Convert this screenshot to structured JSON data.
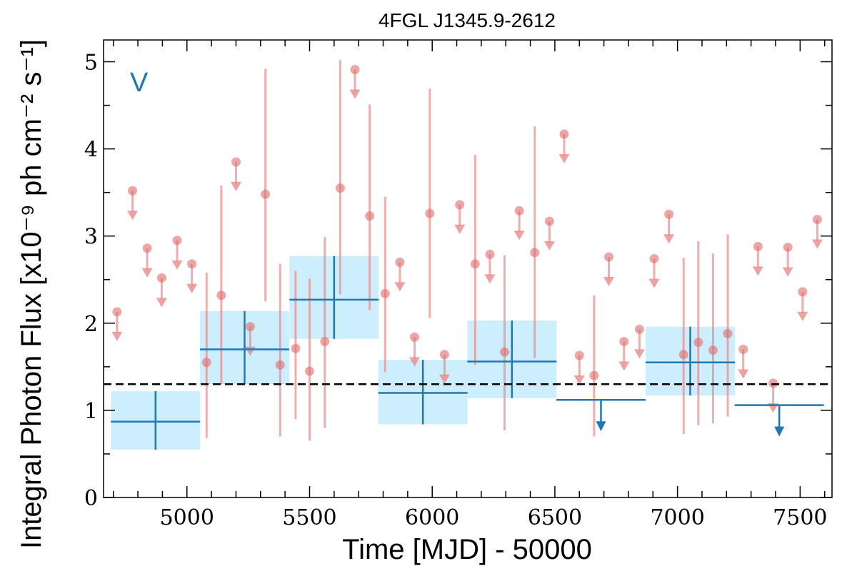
{
  "chart_data": {
    "type": "scatter",
    "title": "4FGL J1345.9-2612",
    "xlabel": "Time [MJD] - 50000",
    "ylabel": "Integral Photon Flux [x10⁻⁹ ph cm⁻² s⁻¹]",
    "panel_label": "V",
    "xlim": [
      4660,
      7630
    ],
    "ylim": [
      0,
      5.25
    ],
    "xticks": [
      5000,
      5500,
      6000,
      6500,
      7000,
      7500
    ],
    "yticks": [
      0,
      1,
      2,
      3,
      4,
      5
    ],
    "grid": false,
    "reference_line": {
      "y": 1.3,
      "style": "dashed"
    },
    "colors": {
      "coarse": "#1f77b4",
      "coarse_band": "#cdeefc",
      "fine": "#e88a8a",
      "reference": "#000000"
    },
    "series": [
      {
        "name": "",
        "points": [
          {
            "x": 4872,
            "y": 0.87,
            "xerr": 182,
            "ylo": 0.55,
            "yhi": 1.22
          },
          {
            "x": 5235,
            "y": 1.7,
            "xerr": 182,
            "ylo": 1.3,
            "yhi": 2.14
          },
          {
            "x": 5600,
            "y": 2.27,
            "xerr": 182,
            "ylo": 1.82,
            "yhi": 2.77
          },
          {
            "x": 5962,
            "y": 1.2,
            "xerr": 182,
            "ylo": 0.84,
            "yhi": 1.58
          },
          {
            "x": 6325,
            "y": 1.56,
            "xerr": 182,
            "ylo": 1.14,
            "yhi": 2.03
          },
          {
            "x": 7052,
            "y": 1.55,
            "xerr": 182,
            "ylo": 1.17,
            "yhi": 1.96
          }
        ],
        "upper_limits": [
          {
            "x": 6688,
            "y": 1.12,
            "xerr": 182
          },
          {
            "x": 7415,
            "y": 1.06,
            "xerr": 182
          }
        ]
      },
      {
        "name": "",
        "points": [
          {
            "x": 5080,
            "y": 1.55,
            "ylo": 0.68,
            "yhi": 2.58
          },
          {
            "x": 5140,
            "y": 2.32,
            "ylo": 1.3,
            "yhi": 3.58
          },
          {
            "x": 5320,
            "y": 3.48,
            "ylo": 2.25,
            "yhi": 4.92
          },
          {
            "x": 5380,
            "y": 1.52,
            "ylo": 0.7,
            "yhi": 2.68
          },
          {
            "x": 5443,
            "y": 1.71,
            "ylo": 0.9,
            "yhi": 2.6
          },
          {
            "x": 5500,
            "y": 1.45,
            "ylo": 0.65,
            "yhi": 2.51
          },
          {
            "x": 5562,
            "y": 1.79,
            "ylo": 0.8,
            "yhi": 2.99
          },
          {
            "x": 5625,
            "y": 3.55,
            "ylo": 2.33,
            "yhi": 5.02
          },
          {
            "x": 5745,
            "y": 3.23,
            "ylo": 2.15,
            "yhi": 4.51
          },
          {
            "x": 5808,
            "y": 2.34,
            "ylo": 1.44,
            "yhi": 3.45
          },
          {
            "x": 5990,
            "y": 3.26,
            "ylo": 2.06,
            "yhi": 4.69
          },
          {
            "x": 6175,
            "y": 2.68,
            "ylo": 1.52,
            "yhi": 3.93
          },
          {
            "x": 6295,
            "y": 1.67,
            "ylo": 0.77,
            "yhi": 2.78
          },
          {
            "x": 6418,
            "y": 2.81,
            "ylo": 1.6,
            "yhi": 4.26
          },
          {
            "x": 6660,
            "y": 1.4,
            "ylo": 0.7,
            "yhi": 2.32
          },
          {
            "x": 7025,
            "y": 1.64,
            "ylo": 0.73,
            "yhi": 2.75
          },
          {
            "x": 7085,
            "y": 1.78,
            "ylo": 0.83,
            "yhi": 2.94
          },
          {
            "x": 7145,
            "y": 1.69,
            "ylo": 0.85,
            "yhi": 2.8
          },
          {
            "x": 7205,
            "y": 1.88,
            "ylo": 0.93,
            "yhi": 3.02
          }
        ],
        "upper_limits": [
          {
            "x": 4715,
            "y": 2.13
          },
          {
            "x": 4778,
            "y": 3.52
          },
          {
            "x": 4838,
            "y": 2.86
          },
          {
            "x": 4897,
            "y": 2.52
          },
          {
            "x": 4960,
            "y": 2.95
          },
          {
            "x": 5020,
            "y": 2.68
          },
          {
            "x": 5200,
            "y": 3.85
          },
          {
            "x": 5258,
            "y": 1.96
          },
          {
            "x": 5685,
            "y": 4.91
          },
          {
            "x": 5868,
            "y": 2.7
          },
          {
            "x": 5928,
            "y": 1.84
          },
          {
            "x": 6050,
            "y": 1.64
          },
          {
            "x": 6112,
            "y": 3.36
          },
          {
            "x": 6235,
            "y": 2.79
          },
          {
            "x": 6355,
            "y": 3.29
          },
          {
            "x": 6478,
            "y": 3.17
          },
          {
            "x": 6538,
            "y": 4.17
          },
          {
            "x": 6600,
            "y": 1.63
          },
          {
            "x": 6720,
            "y": 2.76
          },
          {
            "x": 6782,
            "y": 1.79
          },
          {
            "x": 6845,
            "y": 1.93
          },
          {
            "x": 6905,
            "y": 2.74
          },
          {
            "x": 6965,
            "y": 3.25
          },
          {
            "x": 7268,
            "y": 1.7
          },
          {
            "x": 7328,
            "y": 2.88
          },
          {
            "x": 7390,
            "y": 1.31
          },
          {
            "x": 7450,
            "y": 2.87
          },
          {
            "x": 7510,
            "y": 2.36
          },
          {
            "x": 7570,
            "y": 3.19
          }
        ]
      }
    ]
  }
}
